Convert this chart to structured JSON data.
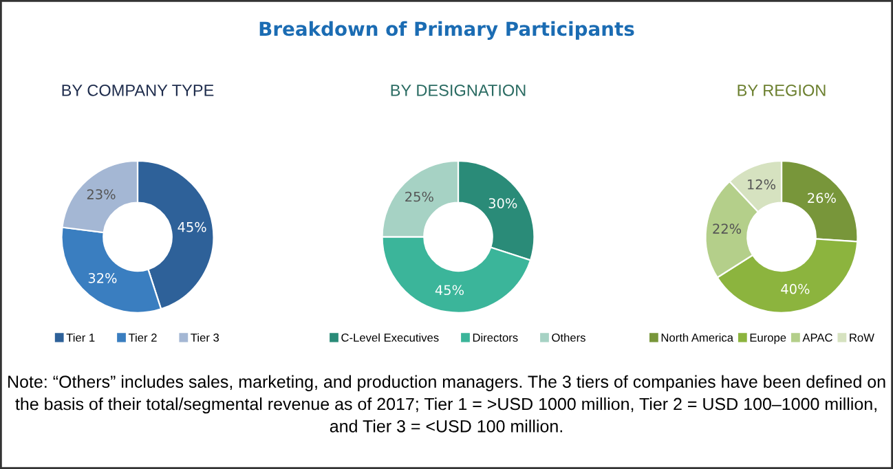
{
  "chart_data": [
    {
      "type": "donut",
      "title": "BY COMPANY TYPE",
      "categories": [
        "Tier 1",
        "Tier 2",
        "Tier 3"
      ],
      "values": [
        45,
        32,
        23
      ],
      "colors": [
        "#2e6199",
        "#3a7ec0",
        "#a4b7d4"
      ],
      "value_labels": [
        "45%",
        "32%",
        "23%"
      ],
      "legend": "bottom"
    },
    {
      "type": "donut",
      "title": "BY DESIGNATION",
      "categories": [
        "C-Level Executives",
        "Directors",
        "Others"
      ],
      "values": [
        30,
        45,
        25
      ],
      "colors": [
        "#2a8b78",
        "#3bb59a",
        "#a6d2c4"
      ],
      "value_labels": [
        "30%",
        "45%",
        "25%"
      ],
      "legend": "bottom"
    },
    {
      "type": "donut",
      "title": "BY REGION",
      "categories": [
        "North America",
        "Europe",
        "APAC",
        "RoW"
      ],
      "values": [
        26,
        40,
        22,
        12
      ],
      "colors": [
        "#78963a",
        "#8cb43e",
        "#b4cf8a",
        "#d6e2c0"
      ],
      "value_labels": [
        "26%",
        "40%",
        "22%",
        "12%"
      ],
      "legend": "bottom"
    },
    {
      "type": "other",
      "title": "Breakdown of Primary Participants",
      "annotations": [
        "Note: “Others” includes sales, marketing, and production managers. The 3 tiers of companies have been defined on the basis of their total/segmental revenue as of 2017; Tier 1 = >USD 1000 million, Tier 2 = USD 100–1000 million, and Tier 3 = <USD 100 million."
      ]
    }
  ]
}
